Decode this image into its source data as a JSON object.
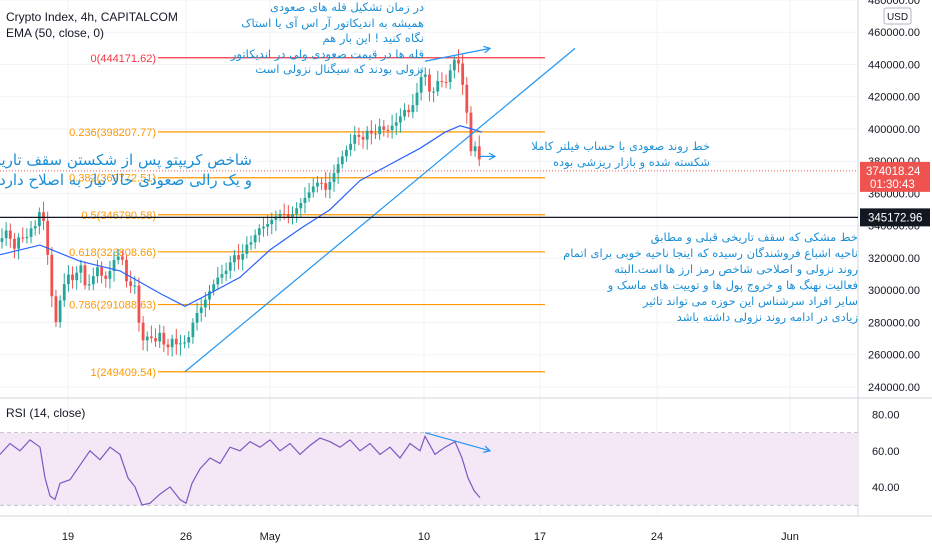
{
  "header": {
    "symbol_line": "Crypto Index, 4h, CAPITALCOM",
    "ema_line": "EMA (50, close, 0)",
    "rsi_title": "RSI (14, close)"
  },
  "price_axis": {
    "currency_badge": "USD",
    "ticks": [
      "480000.00",
      "460000.00",
      "440000.00",
      "420000.00",
      "400000.00",
      "380000.00",
      "360000.00",
      "340000.00",
      "320000.00",
      "300000.00",
      "280000.00",
      "260000.00",
      "240000.00"
    ],
    "current_price_label": "374018.24",
    "countdown_label": "01:30:43",
    "horizontal_line_label": "345172.96"
  },
  "rsi_axis": {
    "ticks": [
      "80.00",
      "60.00",
      "40.00"
    ]
  },
  "time_axis": {
    "ticks": [
      "19",
      "26",
      "May",
      "10",
      "17",
      "24",
      "Jun"
    ]
  },
  "colors": {
    "up_candle": "#26a69a",
    "down_candle": "#ef5350",
    "ema_line": "#2962ff",
    "fib_line": "#ff9800",
    "fib_top_line": "#f23645",
    "trendline": "#2196f3",
    "annotation_text": "#1b8fd6",
    "rsi_line": "#7e57c2",
    "rsi_band": "#e1bee7",
    "current_price_badge": "#ef5350",
    "key_level_badge": "#131722"
  },
  "annotations": {
    "top": [
      "در زمان تشکیل قله های صعودی",
      "همیشه به اندیکاتور آر اس آی یا استاک",
      "نگاه کنید ! این بار هم",
      "قله ها در قیمت صعودی ولی در اندیکاتور",
      "نزولی بودند که سیگنال نزولی است"
    ],
    "left": [
      "شاخص کریپتو پس از شکستن سقف تاریخی",
      "و یک رالی صعودی حالا نیاز به اصلاح دارد"
    ],
    "right_mid": [
      "خط روند صعودی با حساب فیلتر کاملا",
      "شکسته شده و بازار ریزشی بوده"
    ],
    "right_bottom": [
      "خط مشکی که سقف تاریخی قبلی و مطابق",
      "ناحیه اشباع فروشندگان رسیده که اینجا ناحیه خوبی برای اتمام",
      "روند نزولی و اصلاحی شاخص رمز ارز ها است.البته",
      "فعالیت نهنگ ها و خروج پول ها و توییت های ماسک و",
      "سایر افراد سرشناس این حوزه می تواند تاثیر",
      "زیادی در ادامه روند نزولی داشته باشد"
    ]
  },
  "chart_data": {
    "type": "candlestick",
    "title": "Crypto Index, 4h, CAPITALCOM",
    "ylim": [
      235000,
      480000
    ],
    "y_ticks": [
      480000,
      460000,
      440000,
      420000,
      400000,
      380000,
      360000,
      340000,
      320000,
      300000,
      280000,
      260000,
      240000
    ],
    "x_ticks": [
      "19",
      "26",
      "May",
      "10",
      "17",
      "24",
      "Jun"
    ],
    "price_path": [
      [
        0,
        330000
      ],
      [
        7,
        338000
      ],
      [
        14,
        325000
      ],
      [
        20,
        335000
      ],
      [
        25,
        330000
      ],
      [
        30,
        338000
      ],
      [
        36,
        340000
      ],
      [
        40,
        350000
      ],
      [
        44,
        342000
      ],
      [
        48,
        320000
      ],
      [
        52,
        295000
      ],
      [
        56,
        280000
      ],
      [
        62,
        300000
      ],
      [
        68,
        310000
      ],
      [
        74,
        305000
      ],
      [
        80,
        318000
      ],
      [
        86,
        300000
      ],
      [
        92,
        307000
      ],
      [
        98,
        315000
      ],
      [
        104,
        305000
      ],
      [
        110,
        312000
      ],
      [
        116,
        322000
      ],
      [
        120,
        320000
      ],
      [
        124,
        318000
      ],
      [
        128,
        298000
      ],
      [
        132,
        305000
      ],
      [
        136,
        302000
      ],
      [
        140,
        272000
      ],
      [
        144,
        268000
      ],
      [
        148,
        272000
      ],
      [
        152,
        270000
      ],
      [
        156,
        268000
      ],
      [
        160,
        274000
      ],
      [
        166,
        262000
      ],
      [
        172,
        270000
      ],
      [
        178,
        265000
      ],
      [
        184,
        270000
      ],
      [
        186,
        262000
      ],
      [
        190,
        275000
      ],
      [
        196,
        285000
      ],
      [
        202,
        290000
      ],
      [
        210,
        300000
      ],
      [
        218,
        308000
      ],
      [
        226,
        312000
      ],
      [
        234,
        322000
      ],
      [
        240,
        318000
      ],
      [
        246,
        328000
      ],
      [
        252,
        330000
      ],
      [
        258,
        338000
      ],
      [
        266,
        340000
      ],
      [
        274,
        345000
      ],
      [
        282,
        348000
      ],
      [
        290,
        345000
      ],
      [
        298,
        352000
      ],
      [
        306,
        358000
      ],
      [
        314,
        365000
      ],
      [
        320,
        368000
      ],
      [
        326,
        362000
      ],
      [
        332,
        370000
      ],
      [
        338,
        378000
      ],
      [
        344,
        385000
      ],
      [
        350,
        390000
      ],
      [
        356,
        398000
      ],
      [
        362,
        392000
      ],
      [
        368,
        400000
      ],
      [
        374,
        395000
      ],
      [
        380,
        402000
      ],
      [
        386,
        398000
      ],
      [
        392,
        402000
      ],
      [
        398,
        405000
      ],
      [
        404,
        412000
      ],
      [
        410,
        410000
      ],
      [
        416,
        420000
      ],
      [
        420,
        430000
      ],
      [
        424,
        438000
      ],
      [
        428,
        425000
      ],
      [
        432,
        420000
      ],
      [
        436,
        428000
      ],
      [
        440,
        432000
      ],
      [
        444,
        426000
      ],
      [
        448,
        432000
      ],
      [
        452,
        440000
      ],
      [
        456,
        445000
      ],
      [
        460,
        438000
      ],
      [
        464,
        422000
      ],
      [
        468,
        405000
      ],
      [
        470,
        390000
      ],
      [
        472,
        382000
      ],
      [
        474,
        392000
      ],
      [
        476,
        387000
      ],
      [
        478,
        383000
      ],
      [
        480,
        380000
      ],
      [
        482,
        374018
      ]
    ],
    "ema_50": [
      [
        0,
        322000
      ],
      [
        40,
        328000
      ],
      [
        80,
        318000
      ],
      [
        120,
        312000
      ],
      [
        160,
        298000
      ],
      [
        185,
        290000
      ],
      [
        210,
        298000
      ],
      [
        240,
        308000
      ],
      [
        270,
        325000
      ],
      [
        300,
        338000
      ],
      [
        330,
        350000
      ],
      [
        360,
        368000
      ],
      [
        390,
        378000
      ],
      [
        420,
        388000
      ],
      [
        445,
        398000
      ],
      [
        460,
        402000
      ],
      [
        472,
        400000
      ],
      [
        482,
        398000
      ]
    ],
    "fibonacci_levels": [
      {
        "ratio": "0",
        "price": 444171.62,
        "label": "0(444171.62)"
      },
      {
        "ratio": "0.236",
        "price": 398207.77,
        "label": "0.236(398207.77)"
      },
      {
        "ratio": "0.382",
        "price": 369772.51,
        "label": "0.382(369772.51)"
      },
      {
        "ratio": "0.5",
        "price": 346790.58,
        "label": "0.5(346790.58)"
      },
      {
        "ratio": "0.618",
        "price": 323808.66,
        "label": "0.618(323808.66)"
      },
      {
        "ratio": "0.786",
        "price": 291088.63,
        "label": "0.786(291088.63)"
      },
      {
        "ratio": "1",
        "price": 249409.54,
        "label": "1(249409.54)"
      }
    ],
    "key_level": 345172.96,
    "current_price": 374018.24,
    "trendline": {
      "from": [
        185,
        249409.54
      ],
      "to": [
        575,
        450000
      ]
    },
    "annotation_arrows": [
      {
        "from": [
          425,
          442000
        ],
        "to": [
          490,
          450000
        ]
      },
      {
        "from": [
          480,
          383000
        ],
        "to": [
          495,
          383000
        ]
      }
    ],
    "rsi": {
      "ylim": [
        25,
        87
      ],
      "upper_band": 70,
      "lower_band": 30,
      "y_ticks": [
        80,
        60,
        40
      ],
      "values": [
        [
          0,
          58
        ],
        [
          10,
          64
        ],
        [
          20,
          60
        ],
        [
          30,
          66
        ],
        [
          40,
          62
        ],
        [
          45,
          45
        ],
        [
          50,
          35
        ],
        [
          55,
          33
        ],
        [
          60,
          42
        ],
        [
          70,
          44
        ],
        [
          80,
          52
        ],
        [
          90,
          60
        ],
        [
          100,
          55
        ],
        [
          110,
          62
        ],
        [
          120,
          58
        ],
        [
          128,
          45
        ],
        [
          135,
          40
        ],
        [
          142,
          30
        ],
        [
          150,
          31
        ],
        [
          160,
          36
        ],
        [
          170,
          40
        ],
        [
          180,
          33
        ],
        [
          186,
          31
        ],
        [
          192,
          42
        ],
        [
          200,
          50
        ],
        [
          210,
          56
        ],
        [
          220,
          53
        ],
        [
          230,
          62
        ],
        [
          240,
          60
        ],
        [
          250,
          65
        ],
        [
          260,
          62
        ],
        [
          270,
          66
        ],
        [
          280,
          60
        ],
        [
          290,
          64
        ],
        [
          300,
          58
        ],
        [
          310,
          63
        ],
        [
          320,
          67
        ],
        [
          330,
          65
        ],
        [
          340,
          62
        ],
        [
          350,
          66
        ],
        [
          360,
          60
        ],
        [
          370,
          64
        ],
        [
          380,
          58
        ],
        [
          390,
          62
        ],
        [
          400,
          56
        ],
        [
          410,
          64
        ],
        [
          420,
          60
        ],
        [
          425,
          68
        ],
        [
          435,
          58
        ],
        [
          445,
          62
        ],
        [
          455,
          65
        ],
        [
          462,
          56
        ],
        [
          468,
          45
        ],
        [
          474,
          38
        ],
        [
          480,
          34
        ]
      ],
      "divergence_arrow": {
        "from": [
          425,
          70
        ],
        "to": [
          490,
          60
        ]
      }
    }
  }
}
